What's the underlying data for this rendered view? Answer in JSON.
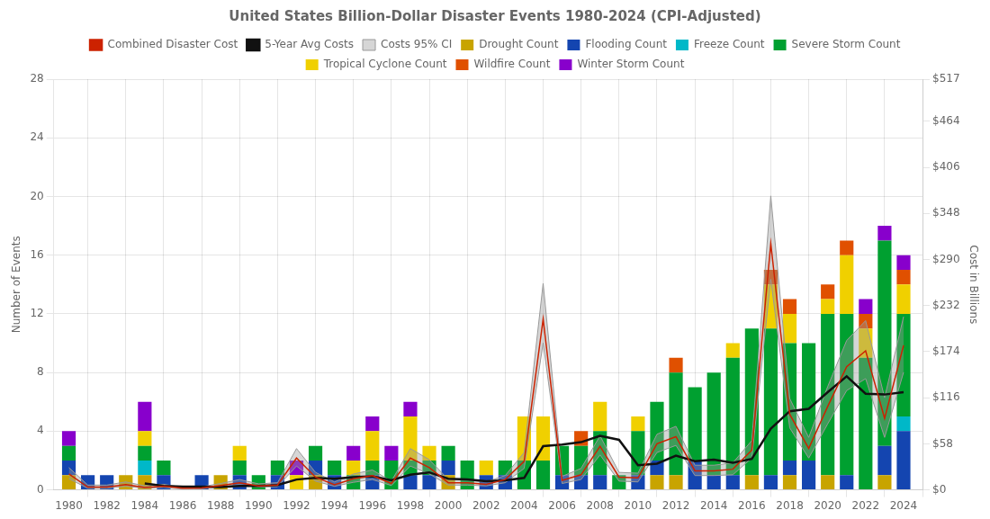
{
  "chart_data": {
    "type": "bar",
    "title": "United States Billion-Dollar Disaster Events 1980-2024 (CPI-Adjusted)",
    "x": [
      1980,
      1981,
      1982,
      1983,
      1984,
      1985,
      1986,
      1987,
      1988,
      1989,
      1990,
      1991,
      1992,
      1993,
      1994,
      1995,
      1996,
      1997,
      1998,
      1999,
      2000,
      2001,
      2002,
      2003,
      2004,
      2005,
      2006,
      2007,
      2008,
      2009,
      2010,
      2011,
      2012,
      2013,
      2014,
      2015,
      2016,
      2017,
      2018,
      2019,
      2020,
      2021,
      2022,
      2023,
      2024
    ],
    "xlim": [
      1979.2,
      2025.0
    ],
    "xticks": [
      1980,
      1982,
      1984,
      1986,
      1988,
      1990,
      1992,
      1994,
      1996,
      1998,
      2000,
      2002,
      2004,
      2006,
      2008,
      2010,
      2012,
      2014,
      2016,
      2018,
      2020,
      2022,
      2024
    ],
    "ylabel": "Number of Events",
    "ylim": [
      0,
      28
    ],
    "yticks": [
      0,
      4,
      8,
      12,
      16,
      20,
      24,
      28
    ],
    "y2label": "Cost in Billions",
    "y2lim": [
      0,
      517
    ],
    "y2ticks": [
      {
        "value": 0,
        "label": "$0"
      },
      {
        "value": 58,
        "label": "$58"
      },
      {
        "value": 116,
        "label": "$116"
      },
      {
        "value": 174,
        "label": "$174"
      },
      {
        "value": 232,
        "label": "$232"
      },
      {
        "value": 290,
        "label": "$290"
      },
      {
        "value": 348,
        "label": "$348"
      },
      {
        "value": 406,
        "label": "$406"
      },
      {
        "value": 464,
        "label": "$464"
      },
      {
        "value": 517,
        "label": "$517"
      }
    ],
    "stacked": true,
    "grid": true,
    "legend": "top",
    "series": [
      {
        "name": "Drought Count",
        "type": "bar",
        "color": "#c8a400",
        "values": [
          1,
          0,
          0,
          1,
          1,
          0,
          0,
          0,
          1,
          0,
          0,
          0,
          0,
          1,
          0,
          0,
          0,
          0,
          0,
          0,
          1,
          0,
          0,
          0,
          0,
          0,
          0,
          0,
          0,
          0,
          0,
          1,
          1,
          0,
          0,
          0,
          1,
          0,
          1,
          0,
          1,
          0,
          0,
          1,
          0
        ]
      },
      {
        "name": "Flooding Count",
        "type": "bar",
        "color": "#1445b0",
        "values": [
          1,
          1,
          1,
          0,
          0,
          1,
          0,
          1,
          0,
          1,
          0,
          1,
          0,
          1,
          1,
          0,
          1,
          0,
          1,
          1,
          1,
          0,
          1,
          1,
          0,
          0,
          1,
          1,
          1,
          0,
          1,
          1,
          0,
          2,
          1,
          1,
          0,
          1,
          1,
          2,
          0,
          1,
          0,
          2,
          4
        ]
      },
      {
        "name": "Freeze Count",
        "type": "bar",
        "color": "#00b8c8",
        "values": [
          0,
          0,
          0,
          0,
          1,
          0,
          0,
          0,
          0,
          0,
          0,
          0,
          0,
          0,
          0,
          0,
          0,
          0,
          0,
          0,
          0,
          0,
          0,
          0,
          0,
          0,
          0,
          0,
          0,
          0,
          0,
          0,
          0,
          0,
          0,
          0,
          0,
          0,
          0,
          0,
          0,
          0,
          0,
          0,
          1
        ]
      },
      {
        "name": "Severe Storm Count",
        "type": "bar",
        "color": "#00a030",
        "values": [
          1,
          0,
          0,
          0,
          1,
          1,
          0,
          0,
          0,
          1,
          1,
          1,
          0,
          1,
          1,
          1,
          1,
          2,
          1,
          1,
          1,
          2,
          0,
          1,
          2,
          2,
          2,
          2,
          3,
          1,
          3,
          4,
          7,
          5,
          7,
          8,
          10,
          10,
          8,
          8,
          11,
          11,
          9,
          14,
          7
        ]
      },
      {
        "name": "Tropical Cyclone Count",
        "type": "bar",
        "color": "#f0d000",
        "values": [
          0,
          0,
          0,
          0,
          1,
          0,
          0,
          0,
          0,
          1,
          0,
          0,
          1,
          0,
          0,
          1,
          2,
          0,
          3,
          1,
          0,
          0,
          1,
          0,
          3,
          3,
          0,
          0,
          2,
          0,
          1,
          0,
          0,
          0,
          0,
          1,
          0,
          3,
          2,
          0,
          1,
          4,
          2,
          0,
          2
        ]
      },
      {
        "name": "Wildfire Count",
        "type": "bar",
        "color": "#e05000",
        "values": [
          0,
          0,
          0,
          0,
          0,
          0,
          0,
          0,
          0,
          0,
          0,
          0,
          0,
          0,
          0,
          0,
          0,
          0,
          0,
          0,
          0,
          0,
          0,
          0,
          0,
          0,
          0,
          1,
          0,
          0,
          0,
          0,
          1,
          0,
          0,
          0,
          0,
          1,
          1,
          0,
          1,
          1,
          1,
          0,
          1
        ]
      },
      {
        "name": "Winter Storm Count",
        "type": "bar",
        "color": "#8800cc",
        "values": [
          1,
          0,
          0,
          0,
          2,
          0,
          0,
          0,
          0,
          0,
          0,
          0,
          1,
          0,
          0,
          1,
          1,
          1,
          1,
          0,
          0,
          0,
          0,
          0,
          0,
          0,
          0,
          0,
          0,
          0,
          0,
          0,
          0,
          0,
          0,
          0,
          0,
          0,
          0,
          0,
          0,
          0,
          1,
          1,
          1
        ]
      },
      {
        "name": "Combined Disaster Cost",
        "type": "line",
        "axis": "y2",
        "color": "#cc2200",
        "values": [
          20.0,
          3.5,
          3.5,
          6.5,
          3.0,
          4.5,
          2.0,
          2.5,
          5.5,
          9.0,
          5.0,
          6.0,
          40.0,
          16.0,
          6.5,
          14.0,
          18.0,
          8.0,
          40.0,
          28.0,
          9.0,
          9.0,
          7.0,
          13.0,
          36.0,
          215.0,
          12.0,
          19.0,
          55.0,
          16.0,
          15.0,
          58.0,
          67.0,
          24.0,
          24.0,
          26.0,
          50.0,
          310.0,
          95.0,
          52.0,
          105.0,
          155.0,
          175.0,
          90.0,
          182.0
        ]
      },
      {
        "name": "Costs 95% CI",
        "type": "band",
        "axis": "y2",
        "color": "#999999",
        "low": [
          14.0,
          2.0,
          2.0,
          4.5,
          2.0,
          3.0,
          1.0,
          1.5,
          3.5,
          6.5,
          3.5,
          4.0,
          30.0,
          11.0,
          4.5,
          9.5,
          13.0,
          5.5,
          30.0,
          20.0,
          6.0,
          6.0,
          5.0,
          9.0,
          27.0,
          185.0,
          8.0,
          13.0,
          44.0,
          11.0,
          10.0,
          47.0,
          56.0,
          18.0,
          18.0,
          19.0,
          40.0,
          265.0,
          78.0,
          40.0,
          83.0,
          125.0,
          140.0,
          66.0,
          148.0
        ],
        "high": [
          28.0,
          6.0,
          6.0,
          10.0,
          5.0,
          7.0,
          3.0,
          4.0,
          8.0,
          13.0,
          7.5,
          9.0,
          52.0,
          22.0,
          10.0,
          20.0,
          25.0,
          11.0,
          52.0,
          38.0,
          13.0,
          13.0,
          10.0,
          18.0,
          47.0,
          260.0,
          17.0,
          27.0,
          68.0,
          22.0,
          21.0,
          70.0,
          80.0,
          31.0,
          31.0,
          34.0,
          62.0,
          370.0,
          115.0,
          66.0,
          130.0,
          188.0,
          213.0,
          116.0,
          218.0
        ]
      },
      {
        "name": "5-Year Avg Costs",
        "type": "line",
        "axis": "y2",
        "color": "#111111",
        "values": [
          null,
          null,
          null,
          null,
          8.0,
          5.0,
          4.0,
          4.0,
          3.5,
          5.0,
          5.0,
          6.0,
          13.0,
          15.0,
          14.0,
          16.0,
          17.0,
          12.0,
          19.0,
          22.0,
          14.0,
          13.0,
          11.0,
          12.0,
          15.0,
          55.0,
          57.0,
          60.0,
          68.0,
          63.0,
          31.0,
          33.0,
          43.0,
          36.0,
          38.0,
          34.0,
          39.0,
          77.0,
          99.0,
          102.0,
          123.0,
          143.0,
          121.0,
          120.0,
          123.0
        ]
      }
    ]
  }
}
